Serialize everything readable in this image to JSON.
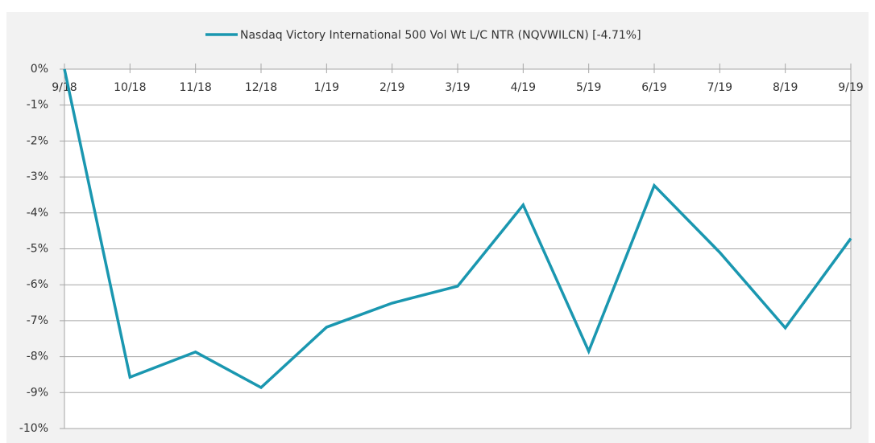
{
  "chart_data": {
    "type": "line",
    "categories": [
      "9/18",
      "10/18",
      "11/18",
      "12/18",
      "1/19",
      "2/19",
      "3/19",
      "4/19",
      "5/19",
      "6/19",
      "7/19",
      "8/19",
      "9/19"
    ],
    "series": [
      {
        "name": "Nasdaq Victory International 500 Vol Wt L/C NTR (NQVWILCN) [-4.71%]",
        "color": "#1a97b0",
        "values": [
          0,
          -8.57,
          -7.87,
          -8.86,
          -7.18,
          -6.51,
          -6.04,
          -3.78,
          -7.85,
          -3.24,
          -5.1,
          -7.2,
          -4.71
        ]
      }
    ],
    "ylim": [
      -10,
      0
    ],
    "yticks": [
      {
        "value": 0,
        "label": "0%"
      },
      {
        "value": -1,
        "label": "-1%"
      },
      {
        "value": -2,
        "label": "-2%"
      },
      {
        "value": -3,
        "label": "-3%"
      },
      {
        "value": -4,
        "label": "-4%"
      },
      {
        "value": -5,
        "label": "-5%"
      },
      {
        "value": -6,
        "label": "-6%"
      },
      {
        "value": -7,
        "label": "-7%"
      },
      {
        "value": -8,
        "label": "-8%"
      },
      {
        "value": -9,
        "label": "-9%"
      },
      {
        "value": -10,
        "label": "-10%"
      }
    ],
    "grid": true,
    "legend": "top"
  }
}
